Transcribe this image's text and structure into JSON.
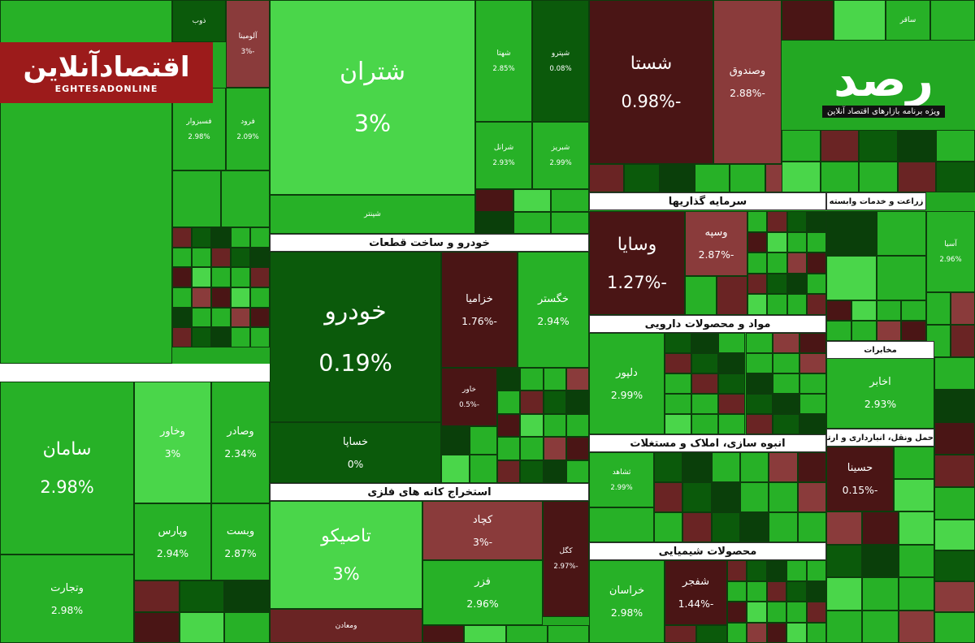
{
  "logo": {
    "title": "اقتصادآنلاین",
    "subtitle": "EGHTESADONLINE"
  },
  "badge": {
    "title": "رصد",
    "subtitle": "ویژه برنامه بازارهای اقتصاد آنلاین"
  },
  "headers": [
    "خودرو و ساخت قطعات",
    "استخراج کانه های فلزی",
    "سرمایه گذاریها",
    "مواد و محصولات دارویی",
    "انبوه سازی، املاک و مستغلات",
    "محصولات شیمیایی",
    "زراعت و خدمات وابسته",
    "مخابرات",
    "حمل ونقل، انبارداری و ارتباطات"
  ],
  "tiles": [
    {
      "label": "شتران",
      "change": "3%"
    },
    {
      "label": "شپنتر"
    },
    {
      "label": "شهتا",
      "change": "2.85%"
    },
    {
      "label": "شپترو",
      "change": "0.08%"
    },
    {
      "label": "شرانل",
      "change": "2.93%"
    },
    {
      "label": "شبریز",
      "change": "2.99%"
    },
    {
      "label": "خودرو",
      "change": "0.19%"
    },
    {
      "label": "خساپا",
      "change": "0%"
    },
    {
      "label": "خزامیا",
      "change": "-1.76%"
    },
    {
      "label": "خگستر",
      "change": "2.94%"
    },
    {
      "label": "خاور",
      "change": "-0.5%"
    },
    {
      "label": "تاصیکو",
      "change": "3%"
    },
    {
      "label": "کچاد",
      "change": "-3%"
    },
    {
      "label": "فزر",
      "change": "2.96%"
    },
    {
      "label": "کگل",
      "change": "-2.97%"
    },
    {
      "label": "ومعادن"
    },
    {
      "label": "سامان",
      "change": "2.98%"
    },
    {
      "label": "وتجارت",
      "change": "2.98%"
    },
    {
      "label": "وخاور",
      "change": "3%"
    },
    {
      "label": "وصادر",
      "change": "2.34%"
    },
    {
      "label": "وپارس",
      "change": "2.94%"
    },
    {
      "label": "وبست",
      "change": "2.87%"
    },
    {
      "label": "شستا",
      "change": "-0.98%"
    },
    {
      "label": "وصندوق",
      "change": "-2.88%"
    },
    {
      "label": "وسایا",
      "change": "-1.27%"
    },
    {
      "label": "وسپه",
      "change": "-2.87%"
    },
    {
      "label": "دلپور",
      "change": "2.99%"
    },
    {
      "label": "ثشاهد",
      "change": "2.99%"
    },
    {
      "label": "خراسان",
      "change": "2.98%"
    },
    {
      "label": "شفجر",
      "change": "-1.44%"
    },
    {
      "label": "حسینا",
      "change": "-0.15%"
    },
    {
      "label": "اخابر",
      "change": "2.93%"
    },
    {
      "label": "آسیا",
      "change": "2.96%"
    },
    {
      "label": "ذوب"
    },
    {
      "label": "آلومینا",
      "change": "-3%"
    },
    {
      "label": "فسبزوار",
      "change": "2.98%"
    },
    {
      "label": "فرود",
      "change": "2.09%"
    },
    {
      "label": "ساقر"
    }
  ]
}
